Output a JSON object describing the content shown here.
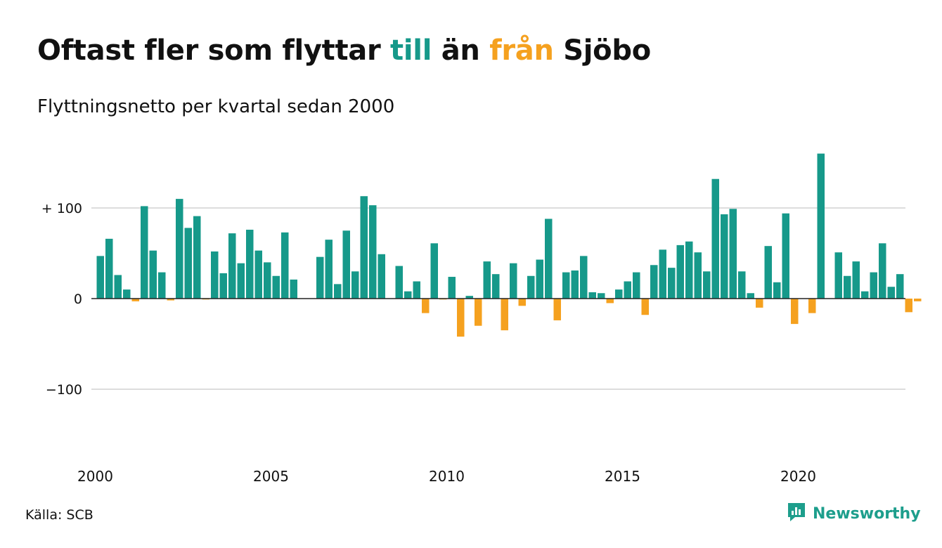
{
  "title": {
    "part1": "Oftast fler som flyttar ",
    "part2": "till",
    "part3": " än ",
    "part4": "från",
    "part5": " Sjöbo"
  },
  "subtitle": "Flyttningsnetto per kvartal sedan 2000",
  "source": "Källa: SCB",
  "brand": {
    "name": "Newsworthy",
    "icon": "newsworthy-logo-icon"
  },
  "colors": {
    "positive": "#16998a",
    "negative": "#f5a11f",
    "grid": "#dddddd",
    "zero": "#222222",
    "text": "#111111"
  },
  "chart_data": {
    "type": "bar",
    "title": "Oftast fler som flyttar till än från Sjöbo",
    "subtitle": "Flyttningsnetto per kvartal sedan 2000",
    "xlabel": "",
    "ylabel": "",
    "ylim": [
      -165,
      165
    ],
    "yticks": [
      {
        "value": 100,
        "label": "+ 100"
      },
      {
        "value": 0,
        "label": "0"
      },
      {
        "value": -100,
        "label": "−100"
      }
    ],
    "xticks": [
      "2000",
      "2005",
      "2010",
      "2015",
      "2020"
    ],
    "grid": true,
    "start_period": "2000 Q1",
    "categories": [
      "2000 Q1",
      "2000 Q2",
      "2000 Q3",
      "2000 Q4",
      "2001 Q1",
      "2001 Q2",
      "2001 Q3",
      "2001 Q4",
      "2002 Q1",
      "2002 Q2",
      "2002 Q3",
      "2002 Q4",
      "2003 Q1",
      "2003 Q2",
      "2003 Q3",
      "2003 Q4",
      "2004 Q1",
      "2004 Q2",
      "2004 Q3",
      "2004 Q4",
      "2005 Q1",
      "2005 Q2",
      "2005 Q3",
      "2005 Q4",
      "2006 Q1",
      "2006 Q2",
      "2006 Q3",
      "2006 Q4",
      "2007 Q1",
      "2007 Q2",
      "2007 Q3",
      "2007 Q4",
      "2008 Q1",
      "2008 Q2",
      "2008 Q3",
      "2008 Q4",
      "2009 Q1",
      "2009 Q2",
      "2009 Q3",
      "2009 Q4",
      "2010 Q1",
      "2010 Q2",
      "2010 Q3",
      "2010 Q4",
      "2011 Q1",
      "2011 Q2",
      "2011 Q3",
      "2011 Q4",
      "2012 Q1",
      "2012 Q2",
      "2012 Q3",
      "2012 Q4",
      "2013 Q1",
      "2013 Q2",
      "2013 Q3",
      "2013 Q4",
      "2014 Q1",
      "2014 Q2",
      "2014 Q3",
      "2014 Q4",
      "2015 Q1",
      "2015 Q2",
      "2015 Q3",
      "2015 Q4",
      "2016 Q1",
      "2016 Q2",
      "2016 Q3",
      "2016 Q4",
      "2017 Q1",
      "2017 Q2",
      "2017 Q3",
      "2017 Q4",
      "2018 Q1",
      "2018 Q2",
      "2018 Q3",
      "2018 Q4",
      "2019 Q1",
      "2019 Q2",
      "2019 Q3",
      "2019 Q4",
      "2020 Q1",
      "2020 Q2",
      "2020 Q3",
      "2020 Q4",
      "2021 Q1",
      "2021 Q2",
      "2021 Q3",
      "2021 Q4",
      "2022 Q1",
      "2022 Q2",
      "2022 Q3",
      "2022 Q4",
      "2023 Q1",
      "2023 Q2"
    ],
    "values": [
      47,
      66,
      26,
      10,
      -3,
      102,
      53,
      29,
      -2,
      110,
      78,
      91,
      -1,
      52,
      28,
      72,
      39,
      76,
      53,
      40,
      25,
      73,
      21,
      0,
      0,
      46,
      65,
      16,
      75,
      30,
      113,
      103,
      49,
      0,
      36,
      8,
      19,
      -16,
      61,
      -1,
      24,
      -42,
      3,
      -30,
      41,
      27,
      -35,
      39,
      -8,
      25,
      43,
      88,
      -24,
      29,
      31,
      47,
      7,
      6,
      -5,
      10,
      19,
      29,
      -18,
      37,
      54,
      34,
      59,
      63,
      51,
      30,
      132,
      93,
      99,
      30,
      6,
      -10,
      58,
      18,
      94,
      -28,
      0,
      -16,
      160,
      0,
      51,
      25,
      41,
      8,
      29,
      61,
      13,
      27,
      -15,
      -3
    ]
  }
}
